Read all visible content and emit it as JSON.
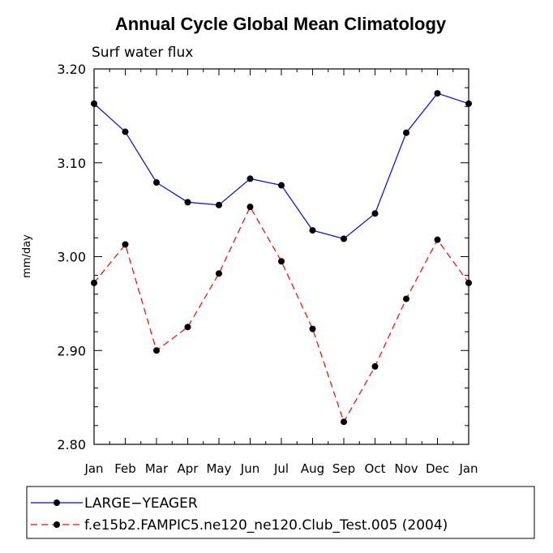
{
  "chart_data": {
    "type": "line",
    "title": "Annual Cycle Global Mean Climatology",
    "subtitle": "Surf water flux",
    "xlabel": "",
    "ylabel": "mm/day",
    "categories": [
      "Jan",
      "Feb",
      "Mar",
      "Apr",
      "May",
      "Jun",
      "Jul",
      "Aug",
      "Sep",
      "Oct",
      "Nov",
      "Dec",
      "Jan"
    ],
    "ylim": [
      2.8,
      3.2
    ],
    "yticks": [
      "2.80",
      "2.90",
      "3.00",
      "3.10",
      "3.20"
    ],
    "grid": false,
    "legend_position": "bottom",
    "series": [
      {
        "name": "LARGE−YEAGER",
        "color": "#0000ff",
        "dash": "solid",
        "values": [
          3.163,
          3.133,
          3.079,
          3.058,
          3.055,
          3.083,
          3.076,
          3.028,
          3.019,
          3.046,
          3.132,
          3.174,
          3.163
        ]
      },
      {
        "name": "f.e15b2.FAMPIC5.ne120_ne120.Club_Test.005 (2004)",
        "color": "#ff0000",
        "dash": "dashed",
        "values": [
          2.972,
          3.013,
          2.9,
          2.925,
          2.982,
          3.053,
          2.995,
          2.923,
          2.824,
          2.883,
          2.955,
          3.018,
          2.972
        ]
      }
    ]
  }
}
